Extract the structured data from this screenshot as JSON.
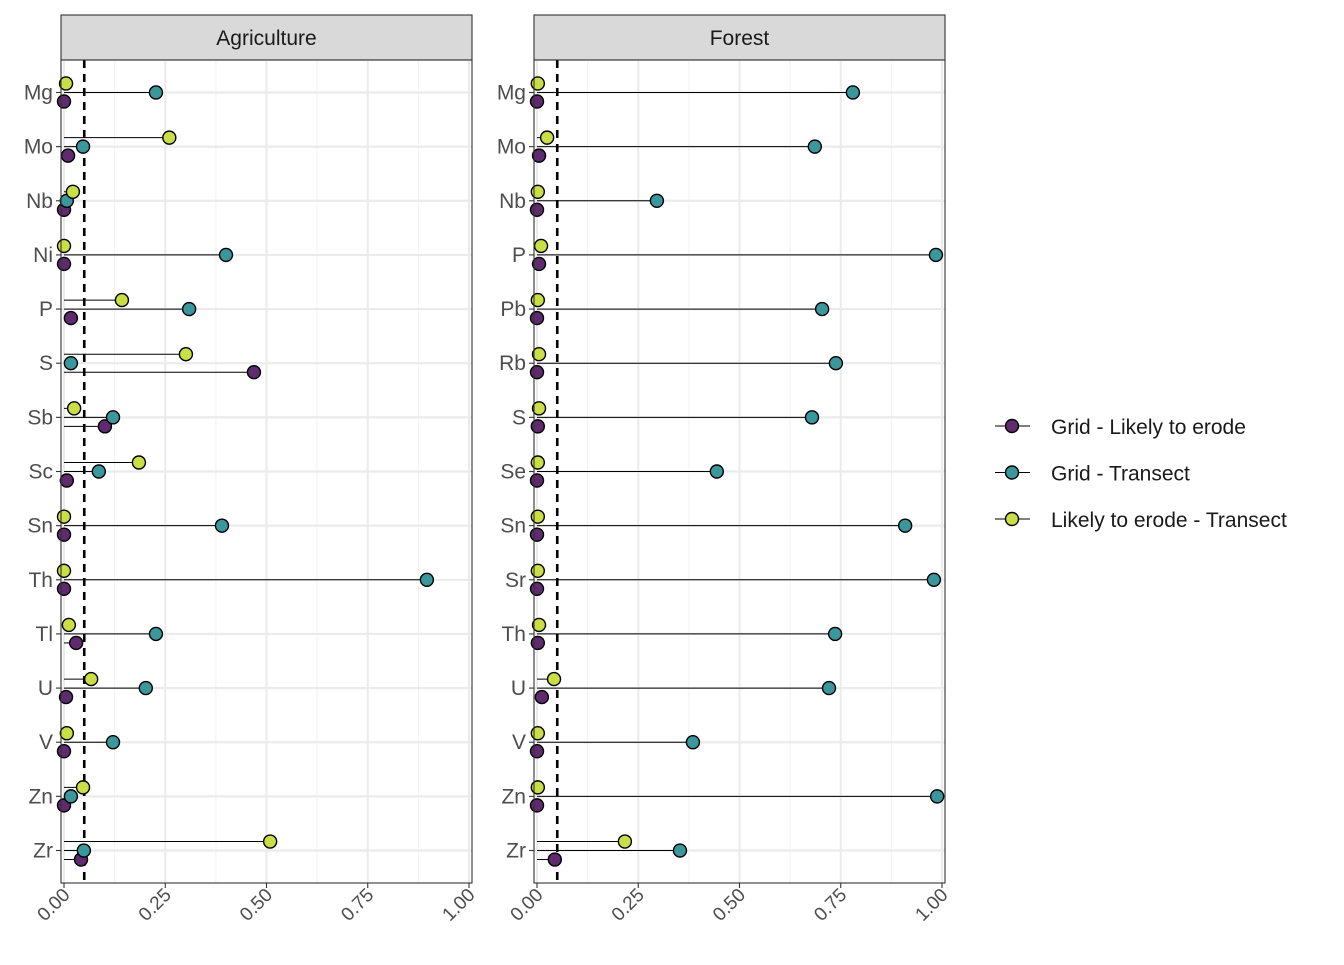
{
  "chart_data": {
    "type": "lollipop",
    "xlim": [
      0,
      1
    ],
    "x_ticks": [
      "0.00",
      "0.25",
      "0.50",
      "0.75",
      "1.00"
    ],
    "x_tick_values": [
      0,
      0.25,
      0.5,
      0.75,
      1
    ],
    "reference_line": 0.05,
    "grid": true,
    "legend_position": "right",
    "series": [
      {
        "name": "Grid - Likely to erode",
        "color": "#5f2a6e"
      },
      {
        "name": "Grid - Transect",
        "color": "#3a989d"
      },
      {
        "name": "Likely to erode - Transect",
        "color": "#c9df45"
      }
    ],
    "panels": [
      {
        "title": "Agriculture",
        "categories": [
          "Mg",
          "Mo",
          "Nb",
          "Ni",
          "P",
          "S",
          "Sb",
          "Sc",
          "Sn",
          "Th",
          "Tl",
          "U",
          "V",
          "Zn",
          "Zr"
        ],
        "values": {
          "Grid - Likely to erode": [
            0.0,
            0.01,
            0.0,
            0.0,
            0.017,
            0.469,
            0.101,
            0.007,
            0.0,
            0.0,
            0.03,
            0.005,
            0.0,
            0.0,
            0.042
          ],
          "Grid - Transect": [
            0.227,
            0.047,
            0.007,
            0.4,
            0.309,
            0.017,
            0.121,
            0.086,
            0.39,
            0.896,
            0.227,
            0.202,
            0.121,
            0.017,
            0.049
          ],
          "Likely to erode - Transect": [
            0.005,
            0.26,
            0.022,
            0.0,
            0.143,
            0.301,
            0.025,
            0.185,
            0.0,
            0.0,
            0.012,
            0.067,
            0.007,
            0.047,
            0.509
          ]
        }
      },
      {
        "title": "Forest",
        "categories": [
          "Mg",
          "Mo",
          "Nb",
          "P",
          "Pb",
          "Rb",
          "S",
          "Se",
          "Sn",
          "Sr",
          "Th",
          "U",
          "V",
          "Zn",
          "Zr"
        ],
        "values": {
          "Grid - Likely to erode": [
            0.0,
            0.005,
            0.0,
            0.005,
            0.0,
            0.0,
            0.002,
            0.0,
            0.0,
            0.0,
            0.002,
            0.012,
            0.0,
            0.0,
            0.044
          ],
          "Grid - Transect": [
            0.78,
            0.686,
            0.296,
            0.985,
            0.704,
            0.738,
            0.679,
            0.444,
            0.909,
            0.98,
            0.736,
            0.721,
            0.385,
            0.988,
            0.353
          ],
          "Likely to erode - Transect": [
            0.002,
            0.025,
            0.002,
            0.01,
            0.002,
            0.005,
            0.005,
            0.002,
            0.002,
            0.002,
            0.005,
            0.042,
            0.002,
            0.002,
            0.217
          ]
        }
      }
    ]
  }
}
